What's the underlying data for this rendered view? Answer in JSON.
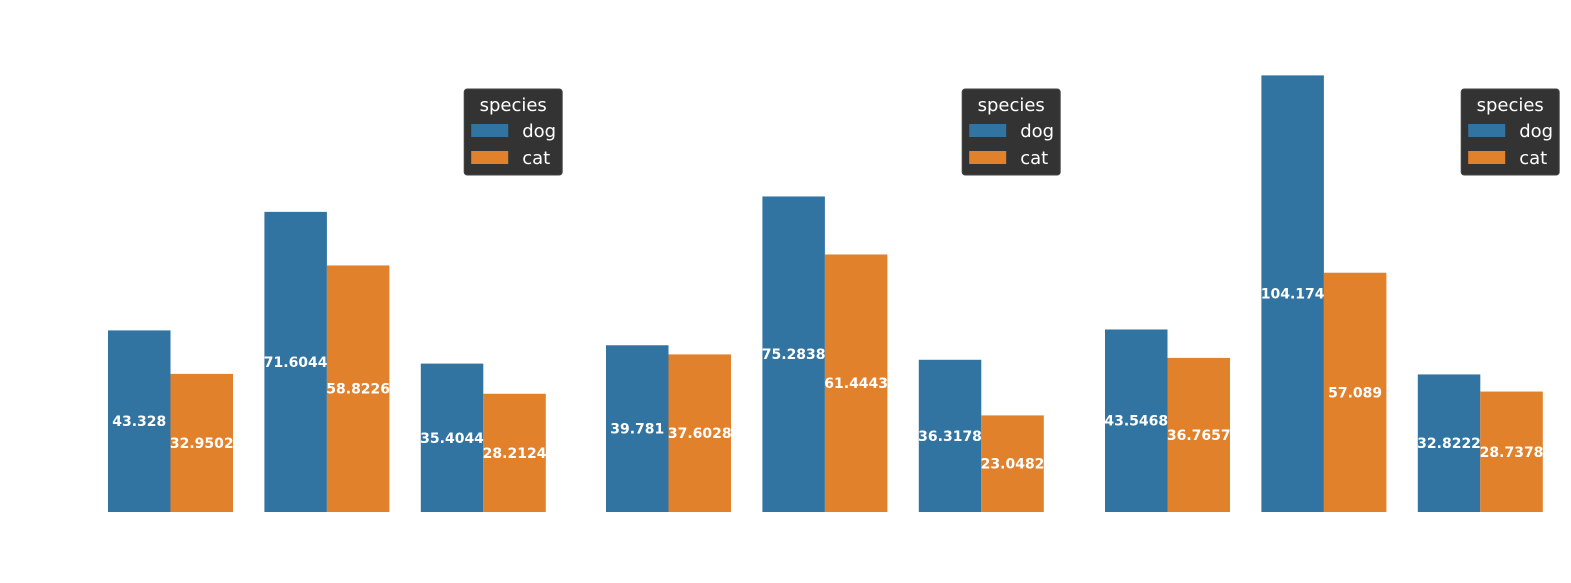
{
  "colors": {
    "dog": "#3274a1",
    "cat": "#e1812c",
    "legend_bg": "#333333",
    "label": "#ffffff"
  },
  "legend": {
    "title": "species",
    "items": [
      "dog",
      "cat"
    ]
  },
  "chart_data": [
    {
      "type": "bar",
      "categories": [
        "",
        "",
        ""
      ],
      "series": [
        {
          "name": "dog",
          "values": [
            43.328,
            71.6044,
            35.4044
          ]
        },
        {
          "name": "cat",
          "values": [
            32.9502,
            58.8226,
            28.2124
          ]
        }
      ],
      "value_labels": {
        "dog": [
          "43.328",
          "71.6044",
          "35.4044"
        ],
        "cat": [
          "32.9502",
          "58.8226",
          "28.2124"
        ]
      },
      "ylim": [
        0,
        115
      ],
      "grid": false,
      "legend_position": "top-right"
    },
    {
      "type": "bar",
      "categories": [
        "",
        "",
        ""
      ],
      "series": [
        {
          "name": "dog",
          "values": [
            39.781,
            75.2838,
            36.3178
          ]
        },
        {
          "name": "cat",
          "values": [
            37.6028,
            61.4443,
            23.0482
          ]
        }
      ],
      "value_labels": {
        "dog": [
          "39.781",
          "75.2838",
          "36.3178"
        ],
        "cat": [
          "37.6028",
          "61.4443",
          "23.0482"
        ]
      },
      "ylim": [
        0,
        115
      ],
      "grid": false,
      "legend_position": "top-right"
    },
    {
      "type": "bar",
      "categories": [
        "",
        "",
        ""
      ],
      "series": [
        {
          "name": "dog",
          "values": [
            43.5468,
            104.174,
            32.8222
          ]
        },
        {
          "name": "cat",
          "values": [
            36.7657,
            57.089,
            28.7378
          ]
        }
      ],
      "value_labels": {
        "dog": [
          "43.5468",
          "104.174",
          "32.8222"
        ],
        "cat": [
          "36.7657",
          "57.089",
          "28.7378"
        ]
      },
      "ylim": [
        0,
        115
      ],
      "grid": false,
      "legend_position": "top-right"
    }
  ]
}
